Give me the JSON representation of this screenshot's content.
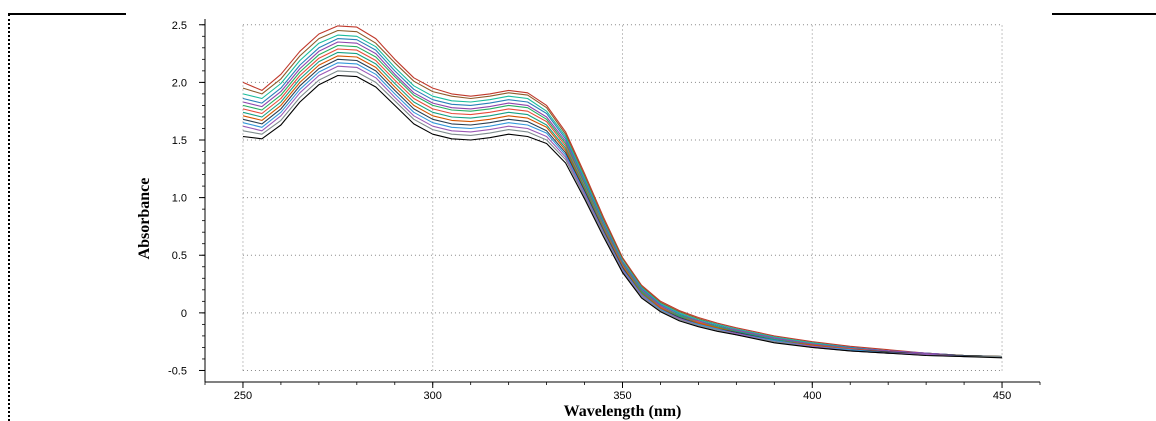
{
  "chart_data": {
    "type": "line",
    "title": "",
    "xlabel": "Wavelength (nm)",
    "ylabel": "Absorbance",
    "xlim": [
      240,
      460
    ],
    "ylim": [
      -0.6,
      2.55
    ],
    "x_ticks": [
      250,
      300,
      350,
      400,
      450
    ],
    "x_tick_labels": [
      "250",
      "300",
      "350",
      "400",
      "450"
    ],
    "y_ticks": [
      -0.5,
      0,
      0.5,
      1.0,
      1.5,
      2.0,
      2.5
    ],
    "y_tick_labels": [
      "-0.5",
      "0",
      "0.5",
      "1.0",
      "1.5",
      "2.0",
      "2.5"
    ],
    "grid": true,
    "legend": "none",
    "x": [
      250,
      255,
      260,
      265,
      270,
      275,
      280,
      285,
      290,
      295,
      300,
      305,
      310,
      315,
      320,
      325,
      330,
      335,
      340,
      345,
      350,
      355,
      360,
      365,
      370,
      375,
      380,
      390,
      400,
      410,
      420,
      430,
      440,
      450
    ],
    "series": [
      {
        "values": [
          2.0,
          1.93,
          2.07,
          2.27,
          2.42,
          2.49,
          2.48,
          2.38,
          2.2,
          2.04,
          1.95,
          1.9,
          1.88,
          1.9,
          1.93,
          1.91,
          1.8,
          1.57,
          1.21,
          0.83,
          0.48,
          0.24,
          0.1,
          0.02,
          -0.04,
          -0.09,
          -0.13,
          -0.2,
          -0.25,
          -0.29,
          -0.32,
          -0.35,
          -0.37,
          -0.38
        ],
        "color": "#c0392b"
      },
      {
        "values": [
          1.95,
          1.9,
          2.03,
          2.23,
          2.38,
          2.45,
          2.44,
          2.34,
          2.17,
          2.01,
          1.92,
          1.88,
          1.86,
          1.88,
          1.91,
          1.89,
          1.78,
          1.55,
          1.19,
          0.81,
          0.47,
          0.23,
          0.09,
          0.01,
          -0.05,
          -0.1,
          -0.14,
          -0.21,
          -0.26,
          -0.3,
          -0.33,
          -0.35,
          -0.37,
          -0.38
        ],
        "color": "#8e5c2b"
      },
      {
        "values": [
          1.9,
          1.86,
          1.99,
          2.19,
          2.34,
          2.41,
          2.4,
          2.31,
          2.13,
          1.97,
          1.88,
          1.84,
          1.83,
          1.85,
          1.88,
          1.86,
          1.75,
          1.53,
          1.17,
          0.79,
          0.45,
          0.22,
          0.08,
          0.0,
          -0.06,
          -0.1,
          -0.14,
          -0.21,
          -0.26,
          -0.3,
          -0.33,
          -0.35,
          -0.37,
          -0.38
        ],
        "color": "#1abc9c"
      },
      {
        "values": [
          1.86,
          1.82,
          1.95,
          2.15,
          2.3,
          2.38,
          2.37,
          2.28,
          2.1,
          1.94,
          1.85,
          1.81,
          1.8,
          1.82,
          1.85,
          1.83,
          1.73,
          1.51,
          1.15,
          0.78,
          0.44,
          0.21,
          0.07,
          -0.01,
          -0.07,
          -0.11,
          -0.15,
          -0.22,
          -0.27,
          -0.3,
          -0.33,
          -0.35,
          -0.37,
          -0.38
        ],
        "color": "#2980b9"
      },
      {
        "values": [
          1.83,
          1.79,
          1.92,
          2.12,
          2.27,
          2.35,
          2.34,
          2.25,
          2.07,
          1.91,
          1.82,
          1.78,
          1.77,
          1.79,
          1.82,
          1.8,
          1.7,
          1.49,
          1.13,
          0.76,
          0.43,
          0.2,
          0.06,
          -0.02,
          -0.07,
          -0.12,
          -0.15,
          -0.22,
          -0.27,
          -0.31,
          -0.33,
          -0.35,
          -0.37,
          -0.38
        ],
        "color": "#8e44ad"
      },
      {
        "values": [
          1.8,
          1.76,
          1.89,
          2.09,
          2.24,
          2.32,
          2.31,
          2.22,
          2.05,
          1.89,
          1.8,
          1.76,
          1.75,
          1.77,
          1.8,
          1.78,
          1.68,
          1.47,
          1.12,
          0.75,
          0.42,
          0.19,
          0.05,
          -0.02,
          -0.08,
          -0.12,
          -0.16,
          -0.23,
          -0.28,
          -0.31,
          -0.34,
          -0.36,
          -0.37,
          -0.38
        ],
        "color": "#27ae60"
      },
      {
        "values": [
          1.77,
          1.73,
          1.86,
          2.06,
          2.21,
          2.29,
          2.28,
          2.19,
          2.02,
          1.86,
          1.77,
          1.73,
          1.72,
          1.74,
          1.77,
          1.75,
          1.66,
          1.45,
          1.1,
          0.74,
          0.41,
          0.18,
          0.05,
          -0.03,
          -0.08,
          -0.13,
          -0.16,
          -0.23,
          -0.28,
          -0.31,
          -0.34,
          -0.36,
          -0.37,
          -0.38
        ],
        "color": "#e74c3c"
      },
      {
        "values": [
          1.74,
          1.7,
          1.83,
          2.03,
          2.18,
          2.26,
          2.25,
          2.16,
          1.99,
          1.83,
          1.74,
          1.7,
          1.69,
          1.71,
          1.74,
          1.72,
          1.63,
          1.43,
          1.09,
          0.73,
          0.4,
          0.18,
          0.04,
          -0.03,
          -0.09,
          -0.13,
          -0.16,
          -0.23,
          -0.28,
          -0.32,
          -0.34,
          -0.36,
          -0.37,
          -0.38
        ],
        "color": "#16a085"
      },
      {
        "values": [
          1.71,
          1.67,
          1.8,
          2.0,
          2.15,
          2.23,
          2.22,
          2.13,
          1.96,
          1.8,
          1.71,
          1.67,
          1.66,
          1.68,
          1.71,
          1.69,
          1.61,
          1.41,
          1.07,
          0.72,
          0.4,
          0.17,
          0.04,
          -0.04,
          -0.09,
          -0.13,
          -0.17,
          -0.24,
          -0.28,
          -0.32,
          -0.34,
          -0.36,
          -0.37,
          -0.38
        ],
        "color": "#d35400"
      },
      {
        "values": [
          1.68,
          1.64,
          1.77,
          1.97,
          2.12,
          2.2,
          2.19,
          2.1,
          1.93,
          1.77,
          1.68,
          1.64,
          1.63,
          1.65,
          1.68,
          1.66,
          1.58,
          1.39,
          1.06,
          0.71,
          0.39,
          0.16,
          0.03,
          -0.04,
          -0.1,
          -0.14,
          -0.17,
          -0.24,
          -0.29,
          -0.32,
          -0.34,
          -0.36,
          -0.37,
          -0.38
        ],
        "color": "#2c3e50"
      },
      {
        "values": [
          1.65,
          1.61,
          1.74,
          1.94,
          2.09,
          2.17,
          2.16,
          2.07,
          1.9,
          1.74,
          1.65,
          1.61,
          1.6,
          1.62,
          1.65,
          1.63,
          1.56,
          1.37,
          1.04,
          0.7,
          0.38,
          0.16,
          0.03,
          -0.05,
          -0.1,
          -0.14,
          -0.18,
          -0.24,
          -0.29,
          -0.32,
          -0.35,
          -0.36,
          -0.38,
          -0.38
        ],
        "color": "#3498db"
      },
      {
        "values": [
          1.62,
          1.58,
          1.71,
          1.91,
          2.06,
          2.14,
          2.13,
          2.04,
          1.87,
          1.71,
          1.62,
          1.58,
          1.57,
          1.59,
          1.62,
          1.6,
          1.53,
          1.35,
          1.03,
          0.69,
          0.37,
          0.15,
          0.02,
          -0.05,
          -0.11,
          -0.15,
          -0.18,
          -0.25,
          -0.29,
          -0.33,
          -0.35,
          -0.36,
          -0.38,
          -0.38
        ],
        "color": "#9b59b6"
      },
      {
        "values": [
          1.58,
          1.55,
          1.67,
          1.87,
          2.02,
          2.1,
          2.09,
          2.0,
          1.84,
          1.68,
          1.59,
          1.55,
          1.54,
          1.56,
          1.59,
          1.57,
          1.5,
          1.33,
          1.01,
          0.68,
          0.36,
          0.14,
          0.02,
          -0.06,
          -0.11,
          -0.15,
          -0.19,
          -0.25,
          -0.3,
          -0.33,
          -0.35,
          -0.37,
          -0.38,
          -0.38
        ],
        "color": "#7f8c8d"
      },
      {
        "values": [
          1.53,
          1.51,
          1.63,
          1.83,
          1.98,
          2.06,
          2.05,
          1.96,
          1.8,
          1.64,
          1.55,
          1.51,
          1.5,
          1.52,
          1.55,
          1.53,
          1.47,
          1.3,
          0.99,
          0.66,
          0.35,
          0.13,
          0.01,
          -0.07,
          -0.12,
          -0.16,
          -0.19,
          -0.26,
          -0.3,
          -0.33,
          -0.35,
          -0.37,
          -0.38,
          -0.39
        ],
        "color": "#000000"
      }
    ]
  }
}
